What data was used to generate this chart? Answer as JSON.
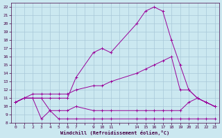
{
  "xlabel": "Windchill (Refroidissement éolien,°C)",
  "background_color": "#cbe8f0",
  "grid_color": "#a8c8d8",
  "line_color": "#990099",
  "ylim": [
    8,
    22.5
  ],
  "xlim": [
    -0.5,
    23.5
  ],
  "yticks": [
    8,
    9,
    10,
    11,
    12,
    13,
    14,
    15,
    16,
    17,
    18,
    19,
    20,
    21,
    22
  ],
  "xtick_positions": [
    0,
    1,
    2,
    3,
    4,
    5,
    6,
    7,
    8,
    9,
    10,
    11,
    12,
    13,
    14,
    15,
    16,
    17,
    18,
    19,
    20,
    21,
    22,
    23
  ],
  "xtick_labels": [
    "0",
    "1",
    "2",
    "3",
    "4",
    "5",
    "6",
    "7",
    "",
    "9",
    "1011",
    "",
    "",
    "",
    "141516171819202122",
    "",
    "",
    "",
    "",
    "",
    "",
    "",
    "23"
  ],
  "series1_x": [
    0,
    1,
    2,
    3,
    4,
    5,
    6,
    7,
    9,
    10,
    11,
    14,
    15,
    16,
    17,
    18,
    19,
    20,
    21,
    22,
    23
  ],
  "series1_y": [
    10.5,
    11.0,
    11.0,
    8.5,
    9.5,
    8.5,
    8.5,
    8.5,
    8.5,
    8.5,
    8.5,
    8.5,
    8.5,
    8.5,
    8.5,
    8.5,
    8.5,
    8.5,
    8.5,
    8.5,
    8.5
  ],
  "series2_x": [
    0,
    1,
    2,
    3,
    4,
    5,
    6,
    7,
    9,
    10,
    11,
    14,
    15,
    16,
    17,
    18,
    19,
    20,
    21,
    22,
    23
  ],
  "series2_y": [
    10.5,
    11.0,
    11.0,
    11.0,
    9.5,
    9.5,
    9.5,
    10.0,
    9.5,
    9.5,
    9.5,
    9.5,
    9.5,
    9.5,
    9.5,
    9.5,
    9.5,
    10.5,
    11.0,
    10.5,
    10.0
  ],
  "series3_x": [
    0,
    1,
    2,
    3,
    4,
    5,
    6,
    7,
    9,
    10,
    11,
    14,
    15,
    16,
    17,
    18,
    19,
    20,
    21,
    22,
    23
  ],
  "series3_y": [
    10.5,
    11.0,
    11.5,
    11.5,
    11.5,
    11.5,
    11.5,
    12.0,
    12.5,
    12.5,
    13.0,
    14.0,
    14.5,
    15.0,
    15.5,
    16.0,
    12.0,
    12.0,
    11.0,
    10.5,
    10.0
  ],
  "series4_x": [
    0,
    1,
    2,
    3,
    4,
    5,
    6,
    7,
    9,
    10,
    11,
    14,
    15,
    16,
    17,
    18,
    19,
    20,
    21,
    22,
    23
  ],
  "series4_y": [
    10.5,
    11.0,
    11.0,
    11.0,
    11.0,
    11.0,
    11.0,
    13.5,
    16.5,
    17.0,
    16.5,
    20.0,
    21.5,
    22.0,
    21.5,
    18.0,
    15.0,
    12.0,
    11.0,
    10.5,
    10.0
  ]
}
